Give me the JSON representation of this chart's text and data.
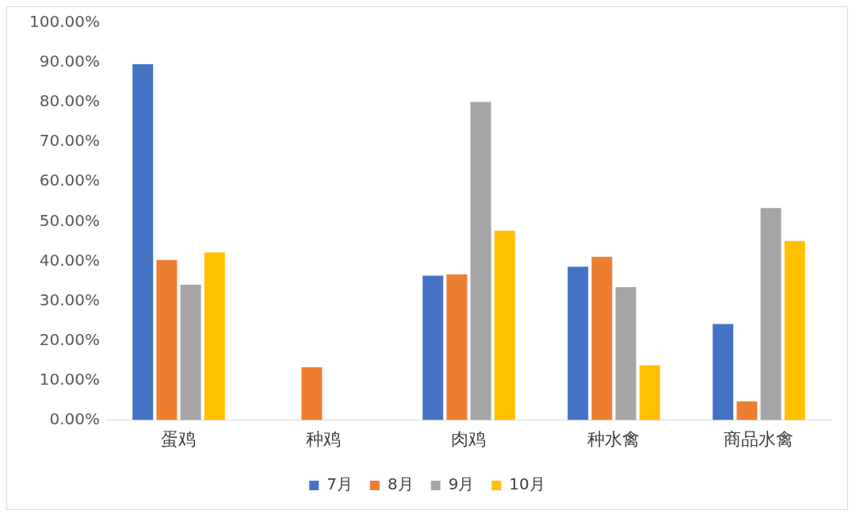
{
  "chart_data": {
    "type": "bar",
    "categories": [
      "蛋鸡",
      "种鸡",
      "肉鸡",
      "种水禽",
      "商品水禽"
    ],
    "series": [
      {
        "name": "7月",
        "color": "#4472c4",
        "values": [
          89.6,
          0,
          36.4,
          38.6,
          24.2
        ]
      },
      {
        "name": "8月",
        "color": "#ed7d31",
        "values": [
          40.3,
          13.3,
          36.7,
          41.1,
          4.7
        ]
      },
      {
        "name": "9月",
        "color": "#a5a5a5",
        "values": [
          34.1,
          0,
          80.1,
          33.5,
          53.4
        ]
      },
      {
        "name": "10月",
        "color": "#ffc000",
        "values": [
          42.2,
          0,
          47.7,
          13.8,
          45.1
        ]
      }
    ],
    "ylim": [
      0,
      100
    ],
    "yticks": [
      {
        "value": 0,
        "label": "0.00%"
      },
      {
        "value": 10,
        "label": "10.00%"
      },
      {
        "value": 20,
        "label": "20.00%"
      },
      {
        "value": 30,
        "label": "30.00%"
      },
      {
        "value": 40,
        "label": "40.00%"
      },
      {
        "value": 50,
        "label": "50.00%"
      },
      {
        "value": 60,
        "label": "60.00%"
      },
      {
        "value": 70,
        "label": "70.00%"
      },
      {
        "value": 80,
        "label": "80.00%"
      },
      {
        "value": 90,
        "label": "90.00%"
      },
      {
        "value": 100,
        "label": "100.00%"
      }
    ],
    "grid": false,
    "legend": "bottom"
  }
}
